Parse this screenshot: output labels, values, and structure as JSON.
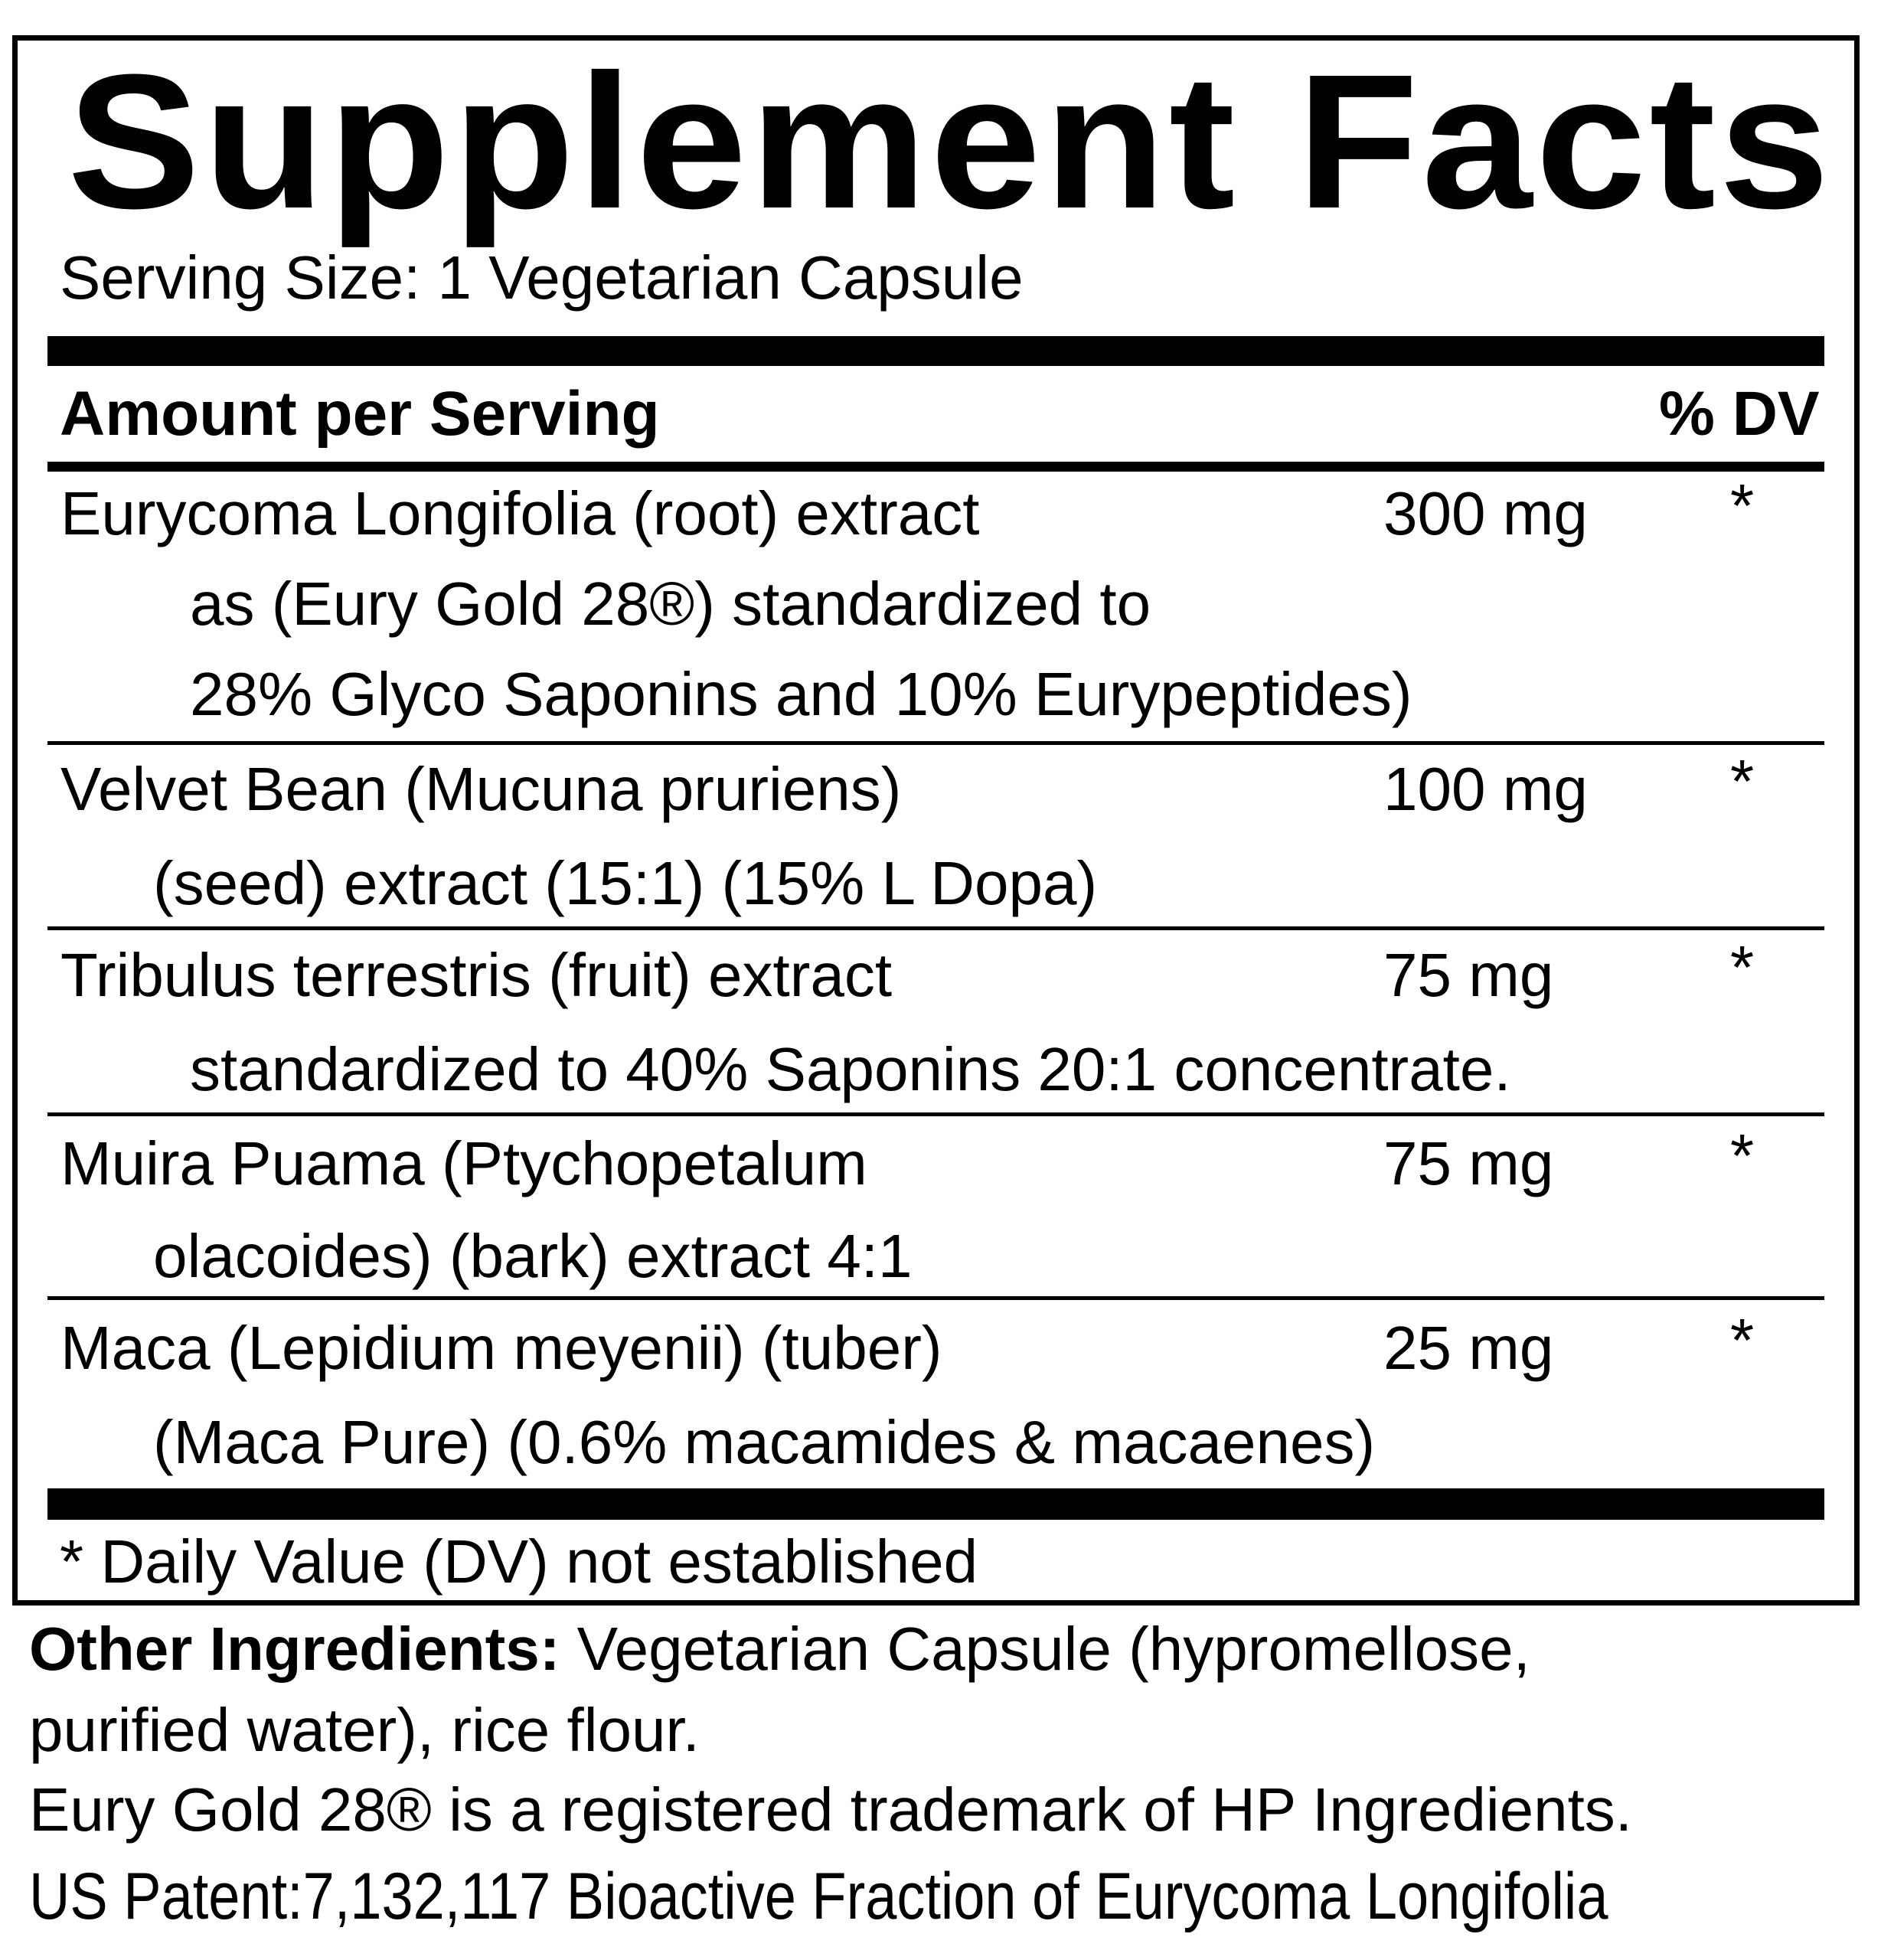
{
  "title": "Supplement Facts",
  "serving_size": "Serving Size:  1 Vegetarian Capsule",
  "header": {
    "amount": "Amount per Serving",
    "dv": "% DV"
  },
  "ingredients": [
    {
      "lines": [
        "Eurycoma Longifolia (root) extract",
        "as (Eury Gold 28®) standardized to",
        "28% Glyco Saponins and 10% Eurypeptides)"
      ],
      "amount": "300 mg",
      "dv": "*"
    },
    {
      "lines": [
        "Velvet Bean (Mucuna pruriens)",
        "(seed) extract (15:1) (15% L Dopa)"
      ],
      "amount": "100 mg",
      "dv": "*"
    },
    {
      "lines": [
        "Tribulus terrestris (fruit) extract",
        "standardized to 40% Saponins 20:1 concentrate."
      ],
      "amount": "75 mg",
      "dv": "*"
    },
    {
      "lines": [
        "Muira Puama (Ptychopetalum",
        "olacoides) (bark) extract 4:1"
      ],
      "amount": "75 mg",
      "dv": "*"
    },
    {
      "lines": [
        "Maca (Lepidium meyenii) (tuber)",
        "(Maca Pure) (0.6% macamides & macaenes)"
      ],
      "amount": "25 mg",
      "dv": "*"
    }
  ],
  "footnote": "* Daily Value (DV) not established",
  "other": {
    "label": "Other Ingredients:",
    "text1": " Vegetarian Capsule (hypromellose,",
    "text2": "purified water), rice flour.",
    "trademark": "Eury Gold 28® is a registered trademark of HP Ingredients.",
    "patent": "US Patent:7,132,117 Bioactive Fraction of Eurycoma Longifolia"
  }
}
